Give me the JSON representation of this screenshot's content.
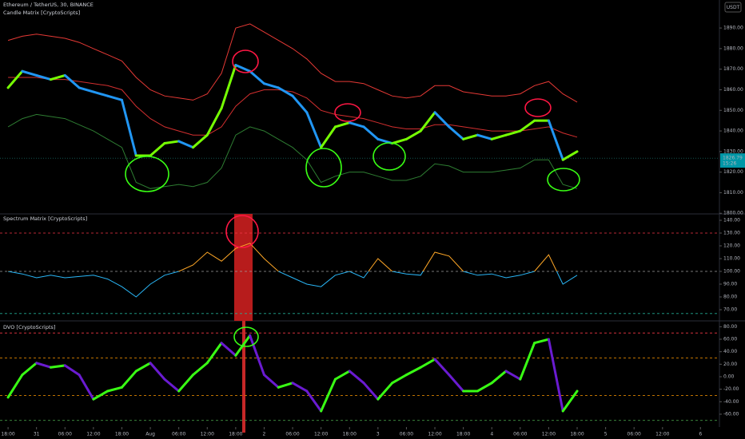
{
  "header": {
    "currency": "USDT",
    "countdown": "15:26"
  },
  "chart_data": [
    {
      "type": "line",
      "title": "Ethereum / TetherUS, 30, BINANCE",
      "subtitle": "Candle Matrix [CryptoScripts]",
      "xlim": [
        -1.7,
        150
      ],
      "ylim": [
        1799.7,
        1903.6
      ],
      "yticks": [
        {
          "value": 1890,
          "label": "1890.00"
        },
        {
          "value": 1880,
          "label": "1880.00"
        },
        {
          "value": 1870,
          "label": "1870.00"
        },
        {
          "value": 1860,
          "label": "1860.00"
        },
        {
          "value": 1850,
          "label": "1850.00"
        },
        {
          "value": 1840,
          "label": "1840.00"
        },
        {
          "value": 1830,
          "label": "1830.00"
        },
        {
          "value": 1820,
          "label": "1820.00"
        },
        {
          "value": 1810,
          "label": "1810.00"
        },
        {
          "value": 1800,
          "label": "1800.00"
        }
      ],
      "last_value": 1826.79,
      "x": [
        0,
        3,
        6,
        9,
        12,
        15,
        18,
        21,
        24,
        27,
        30,
        33,
        36,
        39,
        42,
        45,
        48,
        51,
        54,
        57,
        60,
        63,
        66,
        69,
        72,
        75,
        78,
        81,
        84,
        87,
        90,
        93,
        96,
        99,
        102,
        105,
        108,
        111,
        114,
        117,
        120
      ],
      "series": [
        {
          "color": "#e53935",
          "values": [
            1884,
            1886,
            1887,
            1886,
            1885,
            1883,
            1880,
            1877,
            1874,
            1866,
            1860,
            1857,
            1856,
            1855,
            1858,
            1868,
            1890,
            1892,
            1888,
            1884,
            1880,
            1875,
            1868,
            1864,
            1864,
            1863,
            1860,
            1857,
            1856,
            1857,
            1862,
            1862,
            1859,
            1858,
            1857,
            1857,
            1858,
            1862,
            1864,
            1858,
            1854
          ]
        },
        {
          "color": "#d32f2f",
          "values": [
            1866,
            1866,
            1866,
            1865,
            1865,
            1864,
            1863,
            1862,
            1860,
            1852,
            1846,
            1842,
            1840,
            1838,
            1838,
            1842,
            1852,
            1858,
            1860,
            1860,
            1859,
            1856,
            1850,
            1848,
            1847,
            1846,
            1844,
            1842,
            1841,
            1841,
            1843,
            1843,
            1842,
            1841,
            1840,
            1840,
            1840,
            1841,
            1842,
            1839,
            1837
          ]
        },
        {
          "color": "#2e7d32",
          "values": [
            1842,
            1846,
            1848,
            1847,
            1846,
            1843,
            1840,
            1836,
            1832,
            1815,
            1812,
            1813,
            1814,
            1813,
            1815,
            1822,
            1838,
            1842,
            1840,
            1836,
            1832,
            1826,
            1815,
            1818,
            1820,
            1820,
            1818,
            1816,
            1816,
            1818,
            1824,
            1823,
            1820,
            1820,
            1820,
            1821,
            1822,
            1826,
            1826,
            1814,
            1812
          ]
        },
        {
          "direction_colors": [
            "#76ff03",
            "#2196f3"
          ],
          "width": 3,
          "values": [
            1861,
            1869,
            1867,
            1865,
            1867,
            1861,
            1859,
            1857,
            1855,
            1828,
            1828,
            1834,
            1835,
            1832,
            1838,
            1851,
            1872,
            1869,
            1863,
            1861,
            1857,
            1849,
            1832,
            1842,
            1844,
            1842,
            1836,
            1834,
            1836,
            1840,
            1849,
            1842,
            1836,
            1838,
            1836,
            1838,
            1840,
            1845,
            1845,
            1826,
            1830
          ]
        }
      ]
    },
    {
      "type": "line",
      "title": "Spectrum Matrix [CryptoScripts]",
      "xlim": [
        -1.7,
        150
      ],
      "ylim": [
        61.25,
        145
      ],
      "yticks": [
        {
          "value": 140,
          "label": "140.00"
        },
        {
          "value": 130,
          "label": "130.00"
        },
        {
          "value": 120,
          "label": "120.00"
        },
        {
          "value": 110,
          "label": "110.00"
        },
        {
          "value": 100,
          "label": "100.00"
        },
        {
          "value": 90,
          "label": "90.00"
        },
        {
          "value": 80,
          "label": "80.00"
        },
        {
          "value": 70,
          "label": "70.00"
        }
      ],
      "hlines": [
        {
          "value": 130,
          "color": "#f23645"
        },
        {
          "value": 100,
          "color": "#9e9e9e"
        },
        {
          "value": 67,
          "color": "#22ab94"
        }
      ],
      "x": [
        0,
        3,
        6,
        9,
        12,
        15,
        18,
        21,
        24,
        27,
        30,
        33,
        36,
        39,
        42,
        45,
        48,
        51,
        54,
        57,
        60,
        63,
        66,
        69,
        72,
        75,
        78,
        81,
        84,
        87,
        90,
        93,
        96,
        99,
        102,
        105,
        108,
        111,
        114,
        117,
        120
      ],
      "series": [
        {
          "color_split": {
            "value": 100,
            "above": "#ffa726",
            "below": "#29b6f6"
          },
          "values": [
            100,
            98,
            95,
            97,
            95,
            96,
            97,
            94,
            88,
            80,
            90,
            97,
            100,
            105,
            115,
            108,
            118,
            122,
            110,
            100,
            95,
            90,
            88,
            97,
            100,
            95,
            110,
            100,
            98,
            97,
            115,
            112,
            100,
            97,
            98,
            95,
            97,
            100,
            113,
            90,
            97
          ]
        }
      ]
    },
    {
      "type": "line",
      "title": "DVO [CryptoScripts]",
      "xlim": [
        -1.7,
        150
      ],
      "ylim": [
        -80.5,
        89.4
      ],
      "yticks": [
        {
          "value": 80,
          "label": "80.00"
        },
        {
          "value": 60,
          "label": "60.00"
        },
        {
          "value": 40,
          "label": "40.00"
        },
        {
          "value": 20,
          "label": "20.00"
        },
        {
          "value": 0,
          "label": "0.00"
        },
        {
          "value": -20,
          "label": "-20.00"
        },
        {
          "value": -40,
          "label": "-40.00"
        },
        {
          "value": -60,
          "label": "-60.00"
        }
      ],
      "hlines": [
        {
          "value": 70,
          "color": "#f23645"
        },
        {
          "value": 30,
          "color": "#ff9800"
        },
        {
          "value": -30,
          "color": "#ff9800"
        },
        {
          "value": -70,
          "color": "#4caf50"
        }
      ],
      "xticks": [
        {
          "value": 0,
          "label": "18:00"
        },
        {
          "value": 6,
          "label": "31"
        },
        {
          "value": 12,
          "label": "06:00"
        },
        {
          "value": 18,
          "label": "12:00"
        },
        {
          "value": 24,
          "label": "18:00"
        },
        {
          "value": 30,
          "label": "Aug"
        },
        {
          "value": 36,
          "label": "06:00"
        },
        {
          "value": 42,
          "label": "12:00"
        },
        {
          "value": 48,
          "label": "18:00"
        },
        {
          "value": 54,
          "label": "2"
        },
        {
          "value": 60,
          "label": "06:00"
        },
        {
          "value": 66,
          "label": "12:00"
        },
        {
          "value": 72,
          "label": "18:00"
        },
        {
          "value": 78,
          "label": "3"
        },
        {
          "value": 84,
          "label": "06:00"
        },
        {
          "value": 90,
          "label": "12:00"
        },
        {
          "value": 96,
          "label": "18:00"
        },
        {
          "value": 102,
          "label": "4"
        },
        {
          "value": 108,
          "label": "06:00"
        },
        {
          "value": 114,
          "label": "12:00"
        },
        {
          "value": 120,
          "label": "18:00"
        },
        {
          "value": 126,
          "label": "5"
        },
        {
          "value": 132,
          "label": "06:00"
        },
        {
          "value": 138,
          "label": "12:00"
        },
        {
          "value": 146,
          "label": "6"
        }
      ],
      "x": [
        0,
        3,
        6,
        9,
        12,
        15,
        18,
        21,
        24,
        27,
        30,
        33,
        36,
        39,
        42,
        45,
        48,
        51,
        54,
        57,
        60,
        63,
        66,
        69,
        72,
        75,
        78,
        81,
        84,
        87,
        90,
        93,
        96,
        99,
        102,
        105,
        108,
        111,
        114,
        117,
        120
      ],
      "series": [
        {
          "direction_colors": [
            "#39ff14",
            "#6a1bd1"
          ],
          "width": 3,
          "values": [
            -33,
            3,
            22,
            15,
            18,
            3,
            -36,
            -23,
            -17,
            9,
            22,
            -4,
            -23,
            3,
            22,
            54,
            34,
            66,
            3,
            -17,
            -10,
            -23,
            -55,
            -4,
            9,
            -10,
            -36,
            -10,
            3,
            15,
            28,
            3,
            -23,
            -23,
            -10,
            9,
            -4,
            54,
            60,
            -55,
            -23
          ]
        }
      ]
    }
  ]
}
